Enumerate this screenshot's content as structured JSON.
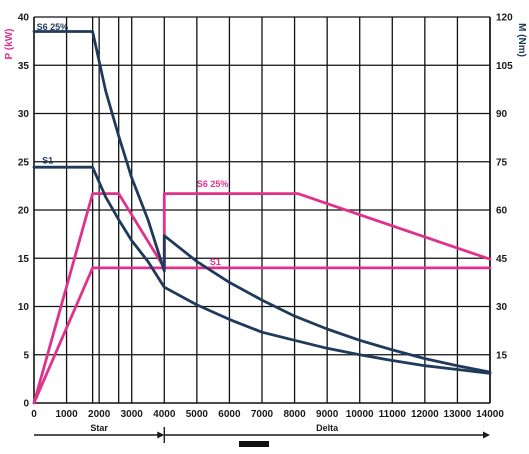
{
  "chart_data": {
    "type": "line",
    "x_ticks": [
      0,
      1000,
      2000,
      3000,
      4000,
      5000,
      6000,
      7000,
      8000,
      9000,
      10000,
      11000,
      12000,
      13000,
      14000
    ],
    "xlim": [
      0,
      14000
    ],
    "left_axis": {
      "label": "P (kW)",
      "ylim": [
        0,
        40
      ],
      "ticks": [
        0,
        5,
        10,
        15,
        20,
        25,
        30,
        35,
        40
      ]
    },
    "right_axis": {
      "label": "M (Nm)",
      "ylim": [
        0,
        120
      ],
      "ticks": [
        15,
        30,
        45,
        60,
        75,
        90,
        105,
        120
      ]
    },
    "extra_vlines": [
      1800,
      2600
    ],
    "grid": true,
    "colors": {
      "power": "#e0328c",
      "torque": "#1f3a5a",
      "grid": "#111111",
      "arrows": "#1a1a1a"
    },
    "series": [
      {
        "name": "S6 25%",
        "quantity": "power",
        "axis": "left",
        "color": "#e0328c",
        "label_at": [
          5000,
          22.4
        ],
        "points": [
          [
            0,
            0
          ],
          [
            1800,
            21.7
          ],
          [
            2600,
            21.7
          ],
          [
            4000,
            14
          ],
          [
            4000,
            21.7
          ],
          [
            8100,
            21.7
          ],
          [
            14000,
            14.9
          ]
        ]
      },
      {
        "name": "S1",
        "quantity": "power",
        "axis": "left",
        "color": "#e0328c",
        "label_at": [
          5400,
          14.3
        ],
        "points": [
          [
            0,
            0
          ],
          [
            1800,
            14
          ],
          [
            14000,
            14
          ]
        ]
      },
      {
        "name": "S6 25%",
        "quantity": "torque",
        "axis": "right",
        "color": "#1f3a5a",
        "label_at": [
          80,
          116
        ],
        "points": [
          [
            0,
            115.5
          ],
          [
            1800,
            115.5
          ],
          [
            2200,
            97
          ],
          [
            2600,
            83
          ],
          [
            3000,
            70
          ],
          [
            3500,
            57
          ],
          [
            4000,
            41
          ],
          [
            4000,
            52
          ],
          [
            5000,
            44
          ],
          [
            6000,
            37.5
          ],
          [
            7000,
            32
          ],
          [
            8000,
            27
          ],
          [
            9000,
            23
          ],
          [
            10000,
            19.5
          ],
          [
            11000,
            16.5
          ],
          [
            12000,
            13.8
          ],
          [
            13000,
            11.6
          ],
          [
            14000,
            9.6
          ]
        ]
      },
      {
        "name": "S1",
        "quantity": "torque",
        "axis": "right",
        "color": "#1f3a5a",
        "label_at": [
          250,
          74.5
        ],
        "points": [
          [
            0,
            73.3
          ],
          [
            1800,
            73.3
          ],
          [
            2200,
            64
          ],
          [
            2600,
            57
          ],
          [
            3000,
            50.5
          ],
          [
            3500,
            44
          ],
          [
            4000,
            36
          ],
          [
            5000,
            30.5
          ],
          [
            6000,
            26
          ],
          [
            7000,
            22
          ],
          [
            8000,
            19.5
          ],
          [
            9000,
            17
          ],
          [
            10000,
            15
          ],
          [
            11000,
            13.2
          ],
          [
            12000,
            11.6
          ],
          [
            13000,
            10.4
          ],
          [
            14000,
            9.2
          ]
        ]
      }
    ],
    "ranges": [
      {
        "label": "Star",
        "from": 0,
        "to": 4000
      },
      {
        "label": "Delta",
        "from": 4000,
        "to": 14000
      }
    ]
  }
}
